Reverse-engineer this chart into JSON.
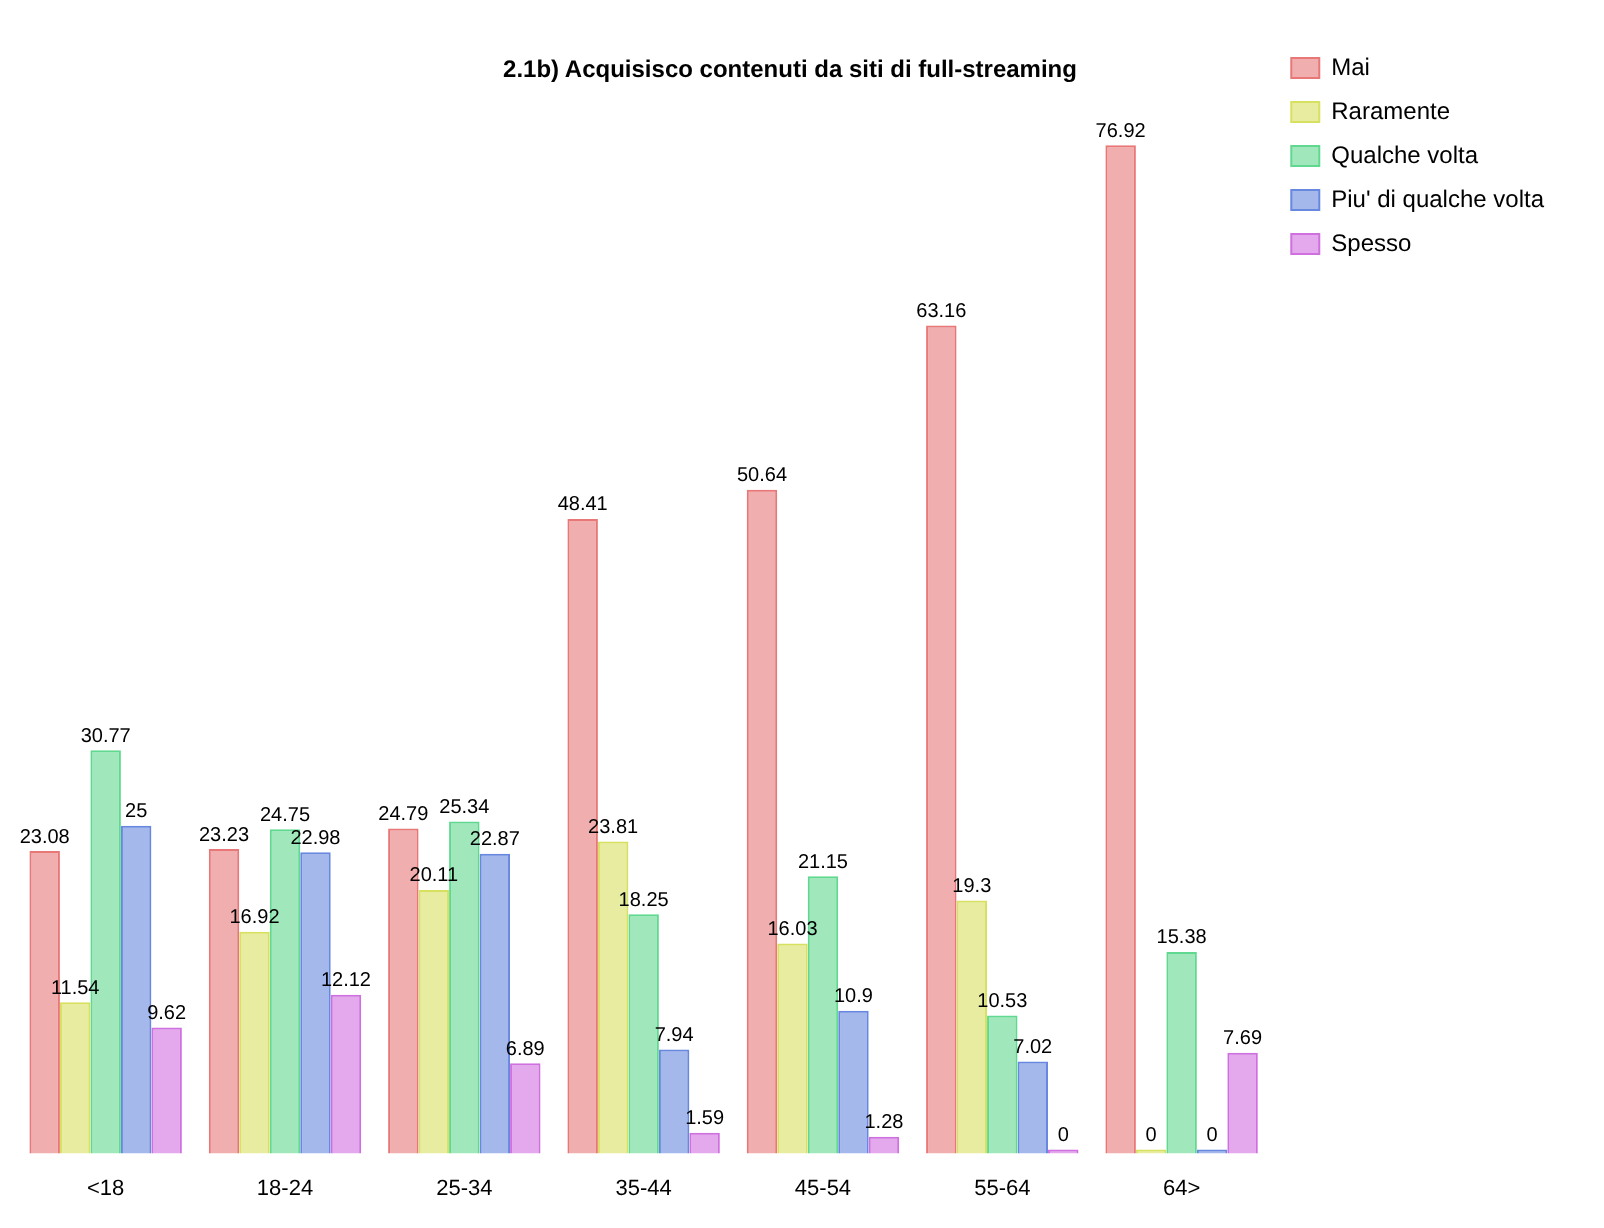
{
  "chart_data": {
    "type": "bar",
    "title": "2.1b) Acquisisco contenuti da siti di full-streaming",
    "categories": [
      "<18",
      "18-24",
      "25-34",
      "35-44",
      "45-54",
      "55-64",
      "64>"
    ],
    "series": [
      {
        "name": "Mai",
        "color": "#e87878",
        "values": [
          23.08,
          23.23,
          24.79,
          48.41,
          50.64,
          63.16,
          76.92
        ]
      },
      {
        "name": "Raramente",
        "color": "#d8e060",
        "values": [
          11.54,
          16.92,
          20.11,
          23.81,
          16.03,
          19.3,
          0
        ]
      },
      {
        "name": "Qualche volta",
        "color": "#60d890",
        "values": [
          30.77,
          24.75,
          25.34,
          18.25,
          21.15,
          10.53,
          15.38
        ]
      },
      {
        "name": "Piu' di qualche volta",
        "color": "#6888e0",
        "values": [
          25,
          22.98,
          22.87,
          7.94,
          10.9,
          7.02,
          0
        ]
      },
      {
        "name": "Spesso",
        "color": "#d070e0",
        "values": [
          9.62,
          12.12,
          6.89,
          1.59,
          1.28,
          0,
          7.69
        ]
      }
    ],
    "data_labels": true,
    "legend": "top right",
    "tick_labels": "x",
    "grid": false
  }
}
